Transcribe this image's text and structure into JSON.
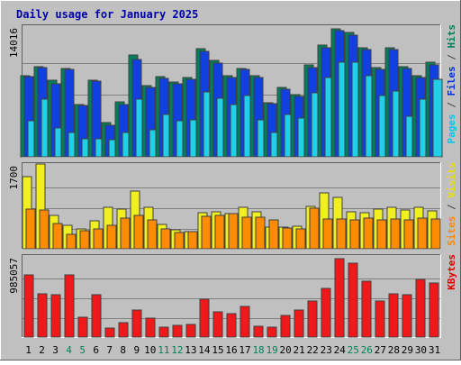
{
  "chart_data": {
    "type": "bar",
    "title": "Daily usage for January 2025",
    "x_labels": [
      "1",
      "2",
      "3",
      "4",
      "5",
      "6",
      "7",
      "8",
      "9",
      "10",
      "11",
      "12",
      "13",
      "14",
      "15",
      "16",
      "17",
      "18",
      "19",
      "20",
      "21",
      "22",
      "23",
      "24",
      "25",
      "26",
      "27",
      "28",
      "29",
      "30",
      "31"
    ],
    "weekend_days": [
      4,
      5,
      11,
      12,
      18,
      19,
      25,
      26
    ],
    "panels": [
      {
        "id": "hits",
        "ylim": [
          0,
          14016
        ],
        "max_label": "14016",
        "y_labels": [
          {
            "text": "Pages",
            "color": "#00c8e8"
          },
          {
            "text": " / ",
            "color": "#444444"
          },
          {
            "text": "Files",
            "color": "#0030e0"
          },
          {
            "text": " / ",
            "color": "#444444"
          },
          {
            "text": "Hits",
            "color": "#00805a"
          }
        ],
        "series": [
          {
            "name": "Hits",
            "color": "#00805a",
            "values": [
              8900,
              9900,
              8400,
              9700,
              5700,
              8400,
              3800,
              6000,
              11200,
              7800,
              8800,
              8200,
              8700,
              11800,
              10600,
              8900,
              9700,
              8900,
              5900,
              7600,
              6800,
              10100,
              12200,
              14000,
              13600,
              11900,
              9800,
              11900,
              9900,
              8900,
              10400
            ]
          },
          {
            "name": "Files",
            "color": "#1040e0",
            "values": [
              8800,
              9800,
              8000,
              9600,
              5600,
              8300,
              3500,
              5700,
              10700,
              7600,
              8600,
              8000,
              8500,
              11500,
              10300,
              8700,
              9600,
              8700,
              5800,
              7400,
              6600,
              9800,
              11900,
              13800,
              13300,
              11700,
              9600,
              11700,
              9700,
              8700,
              10100
            ]
          },
          {
            "name": "Pages",
            "color": "#20d0e8",
            "values": [
              3900,
              6300,
              3200,
              2700,
              2000,
              2000,
              1900,
              2700,
              6300,
              3000,
              4600,
              3900,
              4000,
              7100,
              6400,
              5700,
              6700,
              4000,
              2700,
              4600,
              4200,
              7000,
              8700,
              10400,
              10400,
              8900,
              6700,
              7200,
              4400,
              6300,
              8500
            ]
          }
        ]
      },
      {
        "id": "visits",
        "ylim": [
          0,
          1700
        ],
        "max_label": "1700",
        "y_labels": [
          {
            "text": "Sites",
            "color": "#ff8800"
          },
          {
            "text": " / ",
            "color": "#444444"
          },
          {
            "text": "Visits",
            "color": "#e8e000"
          }
        ],
        "series": [
          {
            "name": "Visits",
            "color": "#f0f020",
            "values": [
              1500,
              1750,
              700,
              480,
              420,
              580,
              860,
              830,
              1200,
              850,
              500,
              400,
              350,
              750,
              770,
              720,
              850,
              770,
              450,
              440,
              460,
              870,
              1150,
              1060,
              770,
              750,
              830,
              860,
              810,
              850,
              780
            ]
          },
          {
            "name": "Sites",
            "color": "#ff8c00",
            "values": [
              820,
              800,
              520,
              300,
              380,
              420,
              490,
              640,
              690,
              600,
              420,
              330,
              350,
              680,
              700,
              720,
              660,
              650,
              590,
              430,
              420,
              840,
              620,
              620,
              600,
              640,
              600,
              610,
              590,
              640,
              610
            ]
          }
        ]
      },
      {
        "id": "kbytes",
        "ylim": [
          0,
          985057
        ],
        "max_label": "985057",
        "y_labels": [
          {
            "text": "KBytes",
            "color": "#e00000"
          }
        ],
        "series": [
          {
            "name": "KBytes",
            "color": "#f01818",
            "values": [
              780000,
              540000,
              530000,
              780000,
              250000,
              530000,
              110000,
              180000,
              340000,
              240000,
              130000,
              150000,
              160000,
              470000,
              320000,
              290000,
              380000,
              140000,
              130000,
              270000,
              340000,
              450000,
              610000,
              985000,
              930000,
              700000,
              450000,
              540000,
              530000,
              720000,
              680000
            ]
          }
        ]
      }
    ]
  }
}
